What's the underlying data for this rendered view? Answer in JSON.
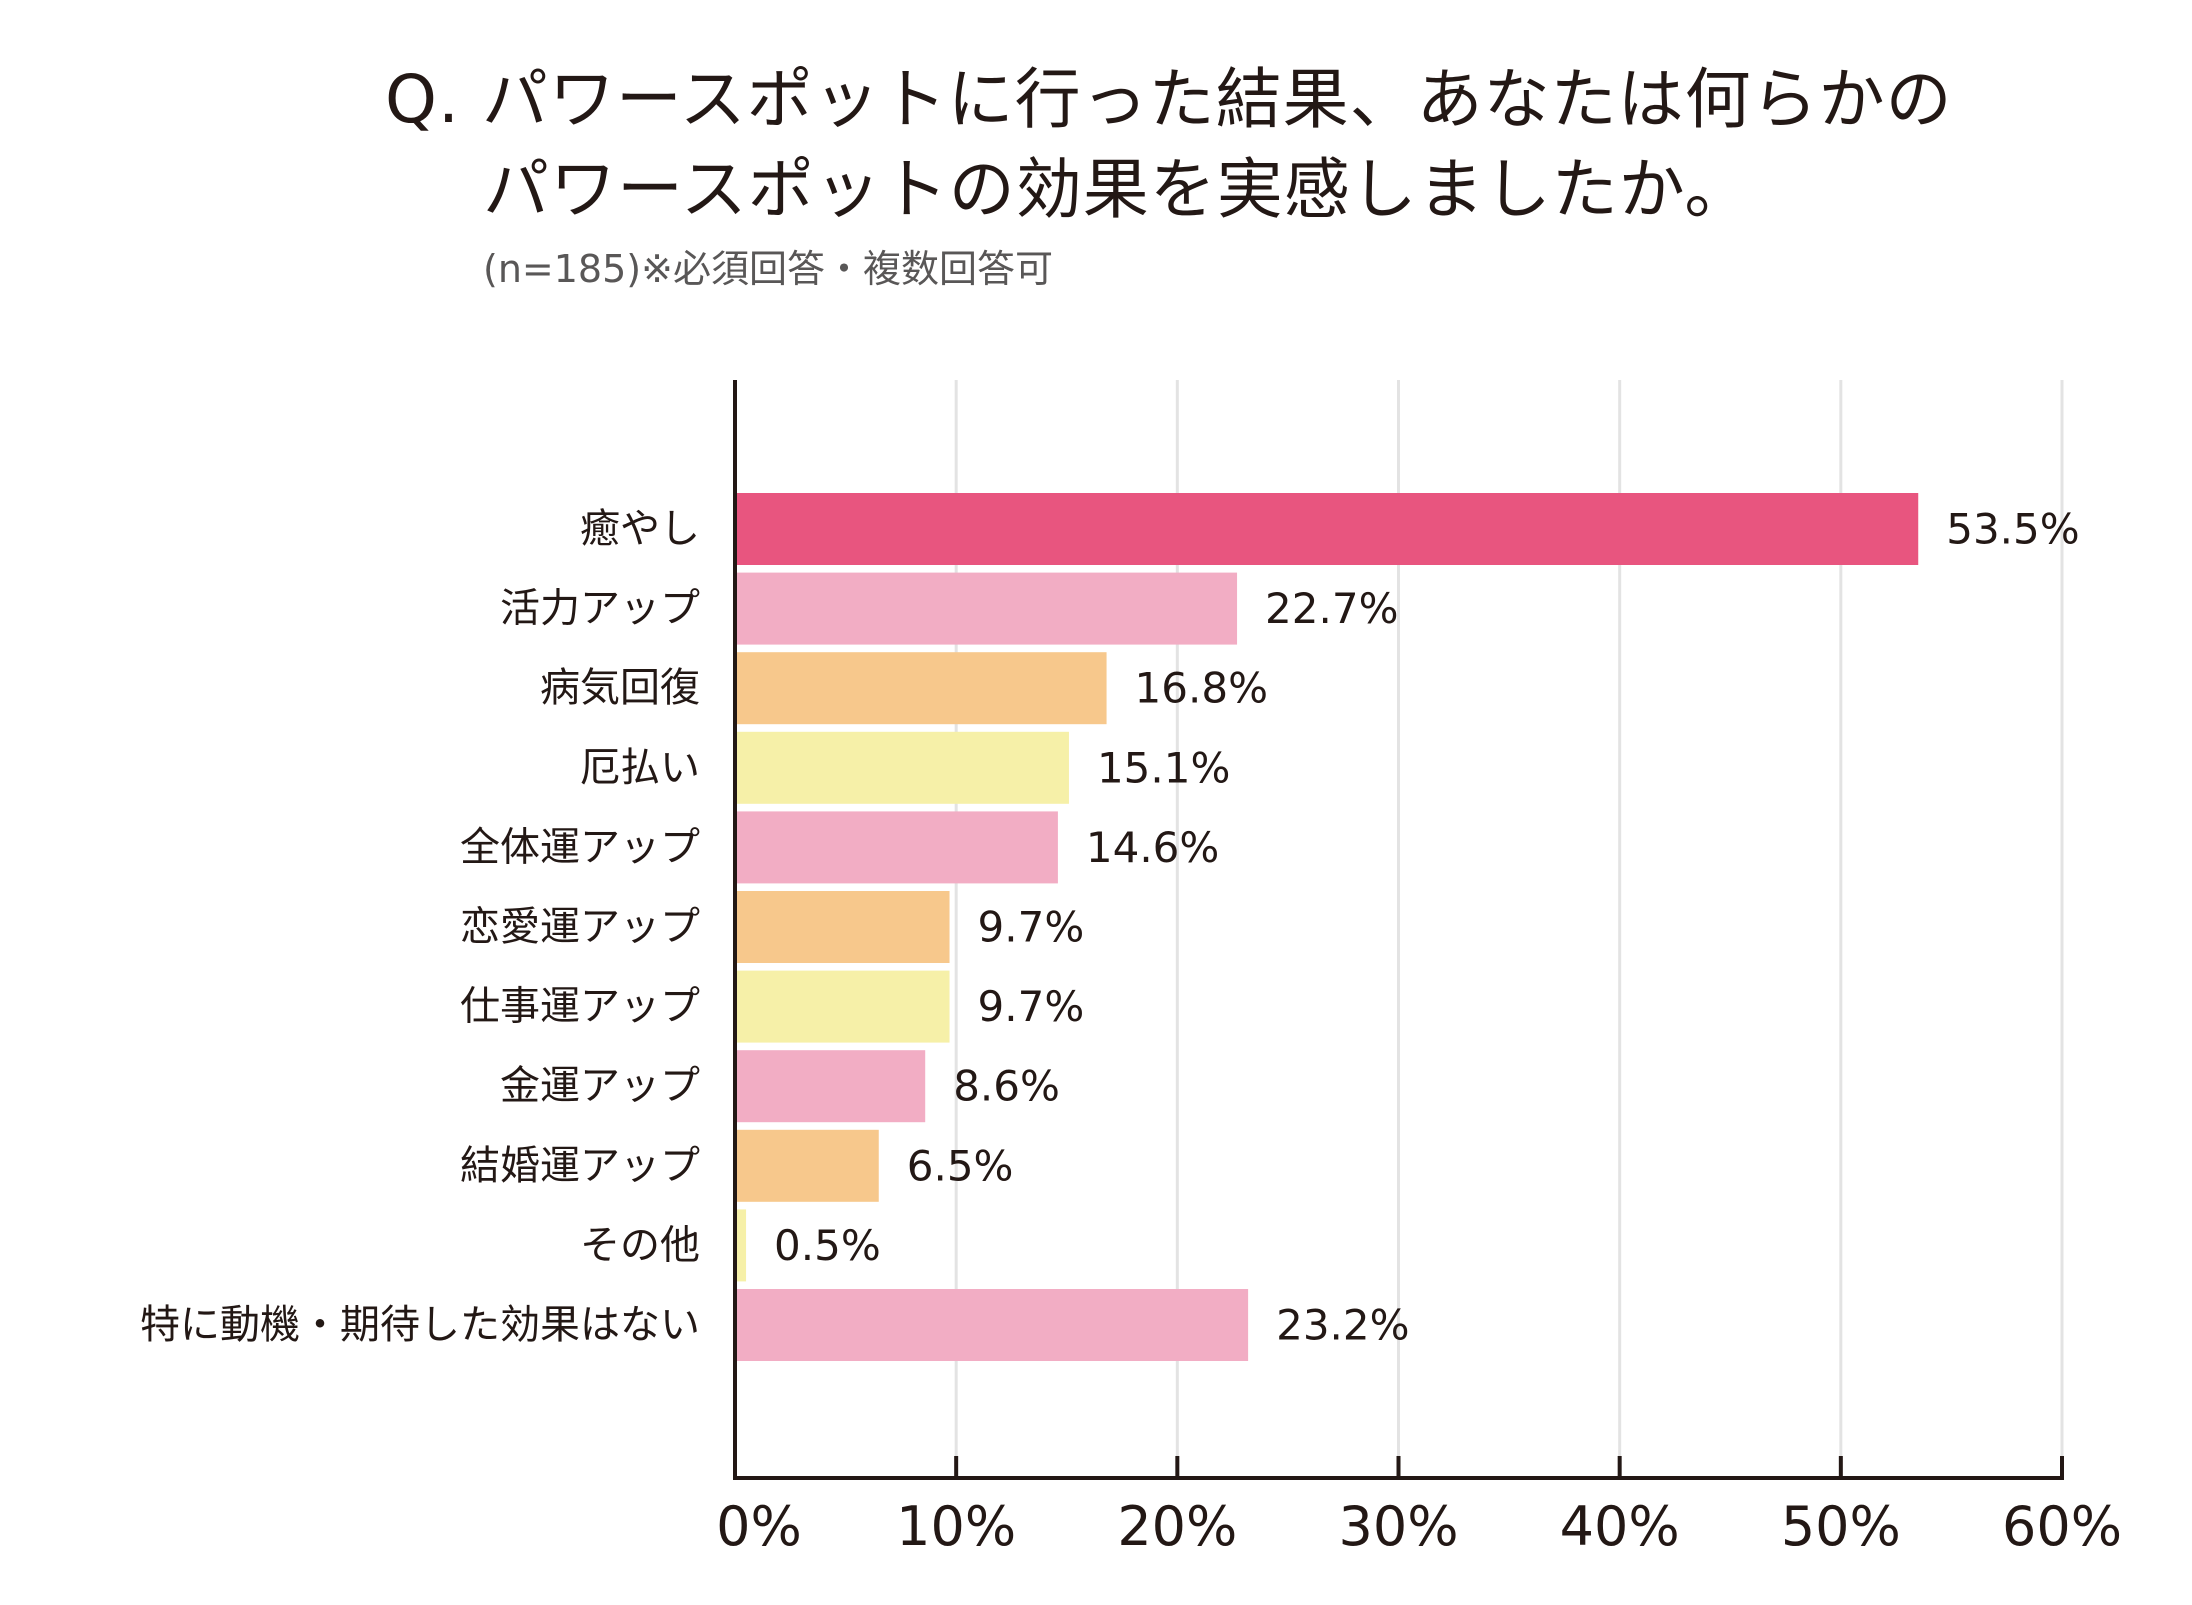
{
  "chart_data": {
    "type": "bar",
    "orientation": "horizontal",
    "title_lines": [
      "Q. パワースポットに行った結果、あなたは何らかの",
      "パワースポットの効果を実感しましたか。"
    ],
    "subtitle": "(n=185)※必須回答・複数回答可",
    "categories": [
      "癒やし",
      "活力アップ",
      "病気回復",
      "厄払い",
      "全体運アップ",
      "恋愛運アップ",
      "仕事運アップ",
      "金運アップ",
      "結婚運アップ",
      "その他",
      "特に動機・期待した効果はない"
    ],
    "values": [
      53.5,
      22.7,
      16.8,
      15.1,
      14.6,
      9.7,
      9.7,
      8.6,
      6.5,
      0.5,
      23.2
    ],
    "value_labels": [
      "53.5%",
      "22.7%",
      "16.8%",
      "15.1%",
      "14.6%",
      "9.7%",
      "9.7%",
      "8.6%",
      "6.5%",
      "0.5%",
      "23.2%"
    ],
    "bar_colors": [
      "#e8557f",
      "#f2adc4",
      "#f7c88c",
      "#f6f0a8",
      "#f2adc4",
      "#f7c88c",
      "#f6f0a8",
      "#f2adc4",
      "#f7c88c",
      "#f6f0a8",
      "#f2adc4"
    ],
    "xlim": [
      0,
      60
    ],
    "xticks": [
      0,
      10,
      20,
      30,
      40,
      50,
      60
    ],
    "xtick_labels": [
      "0%",
      "10%",
      "20%",
      "30%",
      "40%",
      "50%",
      "60%"
    ],
    "grid": true,
    "legend": "none"
  }
}
